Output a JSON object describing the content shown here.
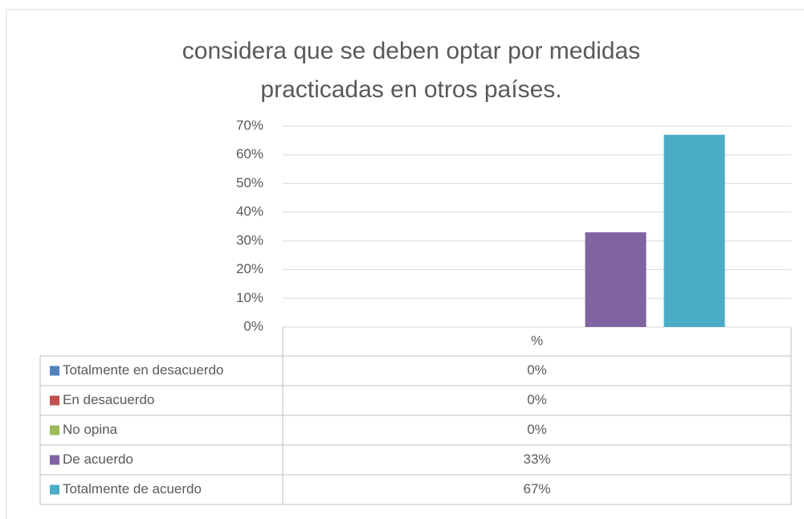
{
  "chart_data": {
    "type": "bar",
    "title": "considera que se deben optar por medidas practicadas en otros países.",
    "categories": [
      "%"
    ],
    "series": [
      {
        "name": "Totalmente en desacuerdo",
        "color": "#4f81bd",
        "values": [
          0
        ],
        "value_labels": [
          "0%"
        ]
      },
      {
        "name": "En desacuerdo",
        "color": "#c0504d",
        "values": [
          0
        ],
        "value_labels": [
          "0%"
        ]
      },
      {
        "name": "No opina",
        "color": "#9bbb59",
        "values": [
          0
        ],
        "value_labels": [
          "0%"
        ]
      },
      {
        "name": "De acuerdo",
        "color": "#8064a2",
        "values": [
          33
        ],
        "value_labels": [
          "33%"
        ]
      },
      {
        "name": "Totalmente de acuerdo",
        "color": "#4bacc6",
        "values": [
          67
        ],
        "value_labels": [
          "67%"
        ]
      }
    ],
    "ylim": [
      0,
      70
    ],
    "yticks": [
      {
        "value": 0,
        "label": "0%"
      },
      {
        "value": 10,
        "label": "10%"
      },
      {
        "value": 20,
        "label": "20%"
      },
      {
        "value": 30,
        "label": "30%"
      },
      {
        "value": 40,
        "label": "40%"
      },
      {
        "value": 50,
        "label": "50%"
      },
      {
        "value": 60,
        "label": "60%"
      },
      {
        "value": 70,
        "label": "70%"
      }
    ],
    "grid": true
  }
}
